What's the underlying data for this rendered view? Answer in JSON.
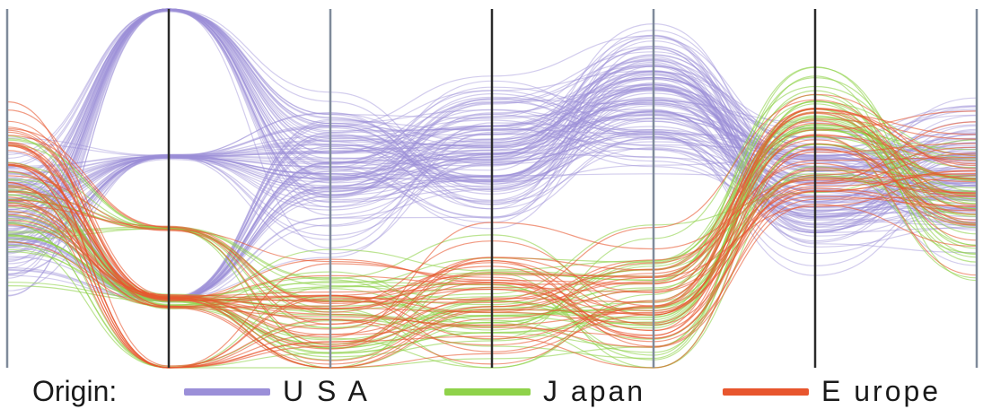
{
  "chart_data": {
    "type": "parallel-coordinates",
    "axes_count": 7,
    "grid": false,
    "legend_position": "bottom",
    "legend": {
      "title": "Origin:",
      "entries": [
        {
          "label": "U S A",
          "color": "#9b8fd8"
        },
        {
          "label": "J apan",
          "color": "#8fd24a"
        },
        {
          "label": "E urope",
          "color": "#e8562e"
        }
      ]
    },
    "series": [
      {
        "color": "#9b8fd8",
        "count": 120,
        "profile": [
          0.58,
          0.02,
          0.45,
          0.4,
          0.25,
          0.5,
          0.45
        ]
      },
      {
        "color": "#8fd24a",
        "count": 40,
        "profile": [
          0.55,
          0.78,
          0.87,
          0.82,
          0.83,
          0.3,
          0.55
        ]
      },
      {
        "color": "#e8562e",
        "count": 40,
        "profile": [
          0.45,
          0.8,
          0.89,
          0.8,
          0.82,
          0.4,
          0.5
        ]
      }
    ]
  }
}
